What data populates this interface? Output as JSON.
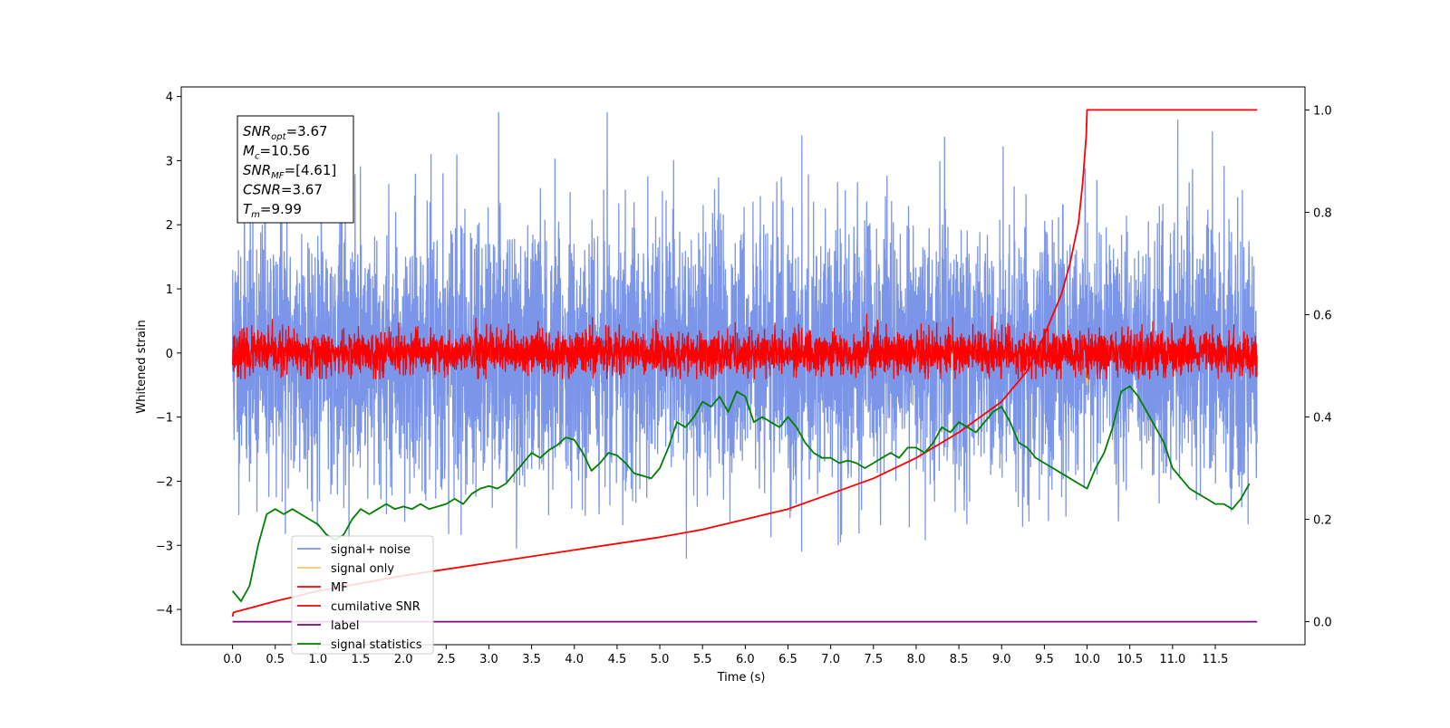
{
  "chart_data": {
    "type": "line",
    "xlabel": "Time (s)",
    "ylabel": "Whitened strain",
    "xlim": [
      -0.6,
      12.55
    ],
    "ylim": [
      -4.55,
      4.15
    ],
    "ylim_right": [
      -0.045,
      1.045
    ],
    "xticks": [
      "0.0",
      "0.5",
      "1.0",
      "1.5",
      "2.0",
      "2.5",
      "3.0",
      "3.5",
      "4.0",
      "4.5",
      "5.0",
      "5.5",
      "6.0",
      "6.5",
      "7.0",
      "7.5",
      "8.0",
      "8.5",
      "9.0",
      "9.5",
      "10.0",
      "10.5",
      "11.0",
      "11.5"
    ],
    "yticks_left": [
      "4",
      "3",
      "2",
      "1",
      "0",
      "−1",
      "−2",
      "−3",
      "−4"
    ],
    "yticks_right": [
      "1.0",
      "0.8",
      "0.6",
      "0.4",
      "0.2",
      "0.0"
    ],
    "annotation": {
      "lines": [
        {
          "sym": "SNR",
          "sub": "opt",
          "value": "=3.67"
        },
        {
          "sym": "M",
          "sub": "c",
          "value": "=10.56"
        },
        {
          "sym": "SNR",
          "sub": "MF",
          "value": "=[4.61]"
        },
        {
          "sym": "CSNR",
          "sub": "",
          "value": "=3.67"
        },
        {
          "sym": "T",
          "sub": "m",
          "value": "=9.99"
        }
      ]
    },
    "legend": {
      "placement": "lower-left",
      "entries": [
        {
          "label": "signal+ noise",
          "color": "#7b96e8"
        },
        {
          "label": "signal only",
          "color": "#f5c96a"
        },
        {
          "label": "MF",
          "color": "#ff0000"
        },
        {
          "label": "cumilative SNR",
          "color": "#ff0000"
        },
        {
          "label": "label",
          "color": "#800080"
        },
        {
          "label": "signal statistics",
          "color": "#008000"
        }
      ]
    },
    "series": [
      {
        "name": "signal+ noise",
        "color": "#7b96e8",
        "axis": "left",
        "t_start": 0.0,
        "t_end": 11.99,
        "mean": 0.0,
        "std": 1.0,
        "range": [
          -4.15,
          3.75
        ]
      },
      {
        "name": "signal only",
        "color": "#f5c96a",
        "axis": "left",
        "x": [
          9.98,
          10.0,
          10.02
        ],
        "y": [
          0.0,
          -0.5,
          0.0
        ]
      },
      {
        "name": "MF",
        "color": "#ff0000",
        "axis": "left",
        "t_start": 0.0,
        "t_end": 11.99,
        "mean": 0.0,
        "std": 0.17,
        "range": [
          -0.4,
          1.0
        ]
      },
      {
        "name": "cumilative SNR",
        "color": "#ff0000",
        "axis": "right",
        "x": [
          0.0,
          0.01,
          0.5,
          1.0,
          2.0,
          3.0,
          4.0,
          5.0,
          5.5,
          6.0,
          6.5,
          7.0,
          7.5,
          8.0,
          8.5,
          9.0,
          9.3,
          9.5,
          9.7,
          9.8,
          9.9,
          9.95,
          9.99,
          10.0,
          11.99
        ],
        "y": [
          0.01,
          0.018,
          0.04,
          0.06,
          0.09,
          0.115,
          0.14,
          0.165,
          0.18,
          0.2,
          0.22,
          0.25,
          0.28,
          0.32,
          0.37,
          0.43,
          0.49,
          0.56,
          0.64,
          0.7,
          0.78,
          0.86,
          0.95,
          1.0,
          1.0
        ]
      },
      {
        "name": "label",
        "color": "#800080",
        "axis": "right",
        "x": [
          0.0,
          11.99
        ],
        "y": [
          0.0,
          0.0
        ]
      },
      {
        "name": "signal statistics",
        "color": "#008000",
        "axis": "right",
        "x": [
          0.0,
          0.1,
          0.2,
          0.3,
          0.4,
          0.5,
          0.6,
          0.7,
          0.8,
          0.9,
          1.0,
          1.1,
          1.2,
          1.3,
          1.4,
          1.5,
          1.6,
          1.7,
          1.8,
          1.9,
          2.0,
          2.1,
          2.2,
          2.3,
          2.4,
          2.5,
          2.6,
          2.7,
          2.8,
          2.9,
          3.0,
          3.1,
          3.2,
          3.3,
          3.4,
          3.5,
          3.6,
          3.7,
          3.8,
          3.9,
          4.0,
          4.1,
          4.2,
          4.3,
          4.4,
          4.5,
          4.6,
          4.7,
          4.8,
          4.9,
          5.0,
          5.1,
          5.2,
          5.3,
          5.4,
          5.5,
          5.6,
          5.7,
          5.8,
          5.9,
          6.0,
          6.1,
          6.2,
          6.3,
          6.4,
          6.5,
          6.6,
          6.7,
          6.8,
          6.9,
          7.0,
          7.1,
          7.2,
          7.3,
          7.4,
          7.5,
          7.6,
          7.7,
          7.8,
          7.9,
          8.0,
          8.1,
          8.2,
          8.3,
          8.4,
          8.5,
          8.6,
          8.7,
          8.8,
          8.9,
          9.0,
          9.1,
          9.2,
          9.3,
          9.4,
          9.5,
          9.6,
          9.7,
          9.8,
          9.9,
          10.0,
          10.1,
          10.2,
          10.3,
          10.4,
          10.5,
          10.6,
          10.7,
          10.8,
          10.9,
          11.0,
          11.1,
          11.2,
          11.3,
          11.4,
          11.5,
          11.6,
          11.7,
          11.8,
          11.9
        ],
        "y": [
          0.06,
          0.04,
          0.07,
          0.15,
          0.21,
          0.22,
          0.21,
          0.22,
          0.21,
          0.2,
          0.19,
          0.17,
          0.16,
          0.17,
          0.2,
          0.22,
          0.21,
          0.22,
          0.23,
          0.22,
          0.225,
          0.22,
          0.23,
          0.22,
          0.225,
          0.23,
          0.24,
          0.23,
          0.25,
          0.26,
          0.265,
          0.26,
          0.27,
          0.29,
          0.31,
          0.33,
          0.32,
          0.335,
          0.345,
          0.36,
          0.355,
          0.33,
          0.295,
          0.31,
          0.33,
          0.325,
          0.31,
          0.29,
          0.285,
          0.28,
          0.3,
          0.34,
          0.39,
          0.38,
          0.4,
          0.43,
          0.42,
          0.44,
          0.41,
          0.45,
          0.44,
          0.39,
          0.4,
          0.39,
          0.38,
          0.4,
          0.38,
          0.35,
          0.33,
          0.32,
          0.32,
          0.31,
          0.315,
          0.31,
          0.3,
          0.31,
          0.32,
          0.33,
          0.32,
          0.34,
          0.34,
          0.33,
          0.35,
          0.38,
          0.37,
          0.39,
          0.38,
          0.37,
          0.39,
          0.41,
          0.42,
          0.39,
          0.35,
          0.34,
          0.32,
          0.31,
          0.3,
          0.29,
          0.28,
          0.27,
          0.26,
          0.3,
          0.33,
          0.38,
          0.45,
          0.46,
          0.44,
          0.41,
          0.38,
          0.35,
          0.3,
          0.28,
          0.26,
          0.25,
          0.24,
          0.23,
          0.23,
          0.22,
          0.24,
          0.27
        ]
      }
    ]
  }
}
